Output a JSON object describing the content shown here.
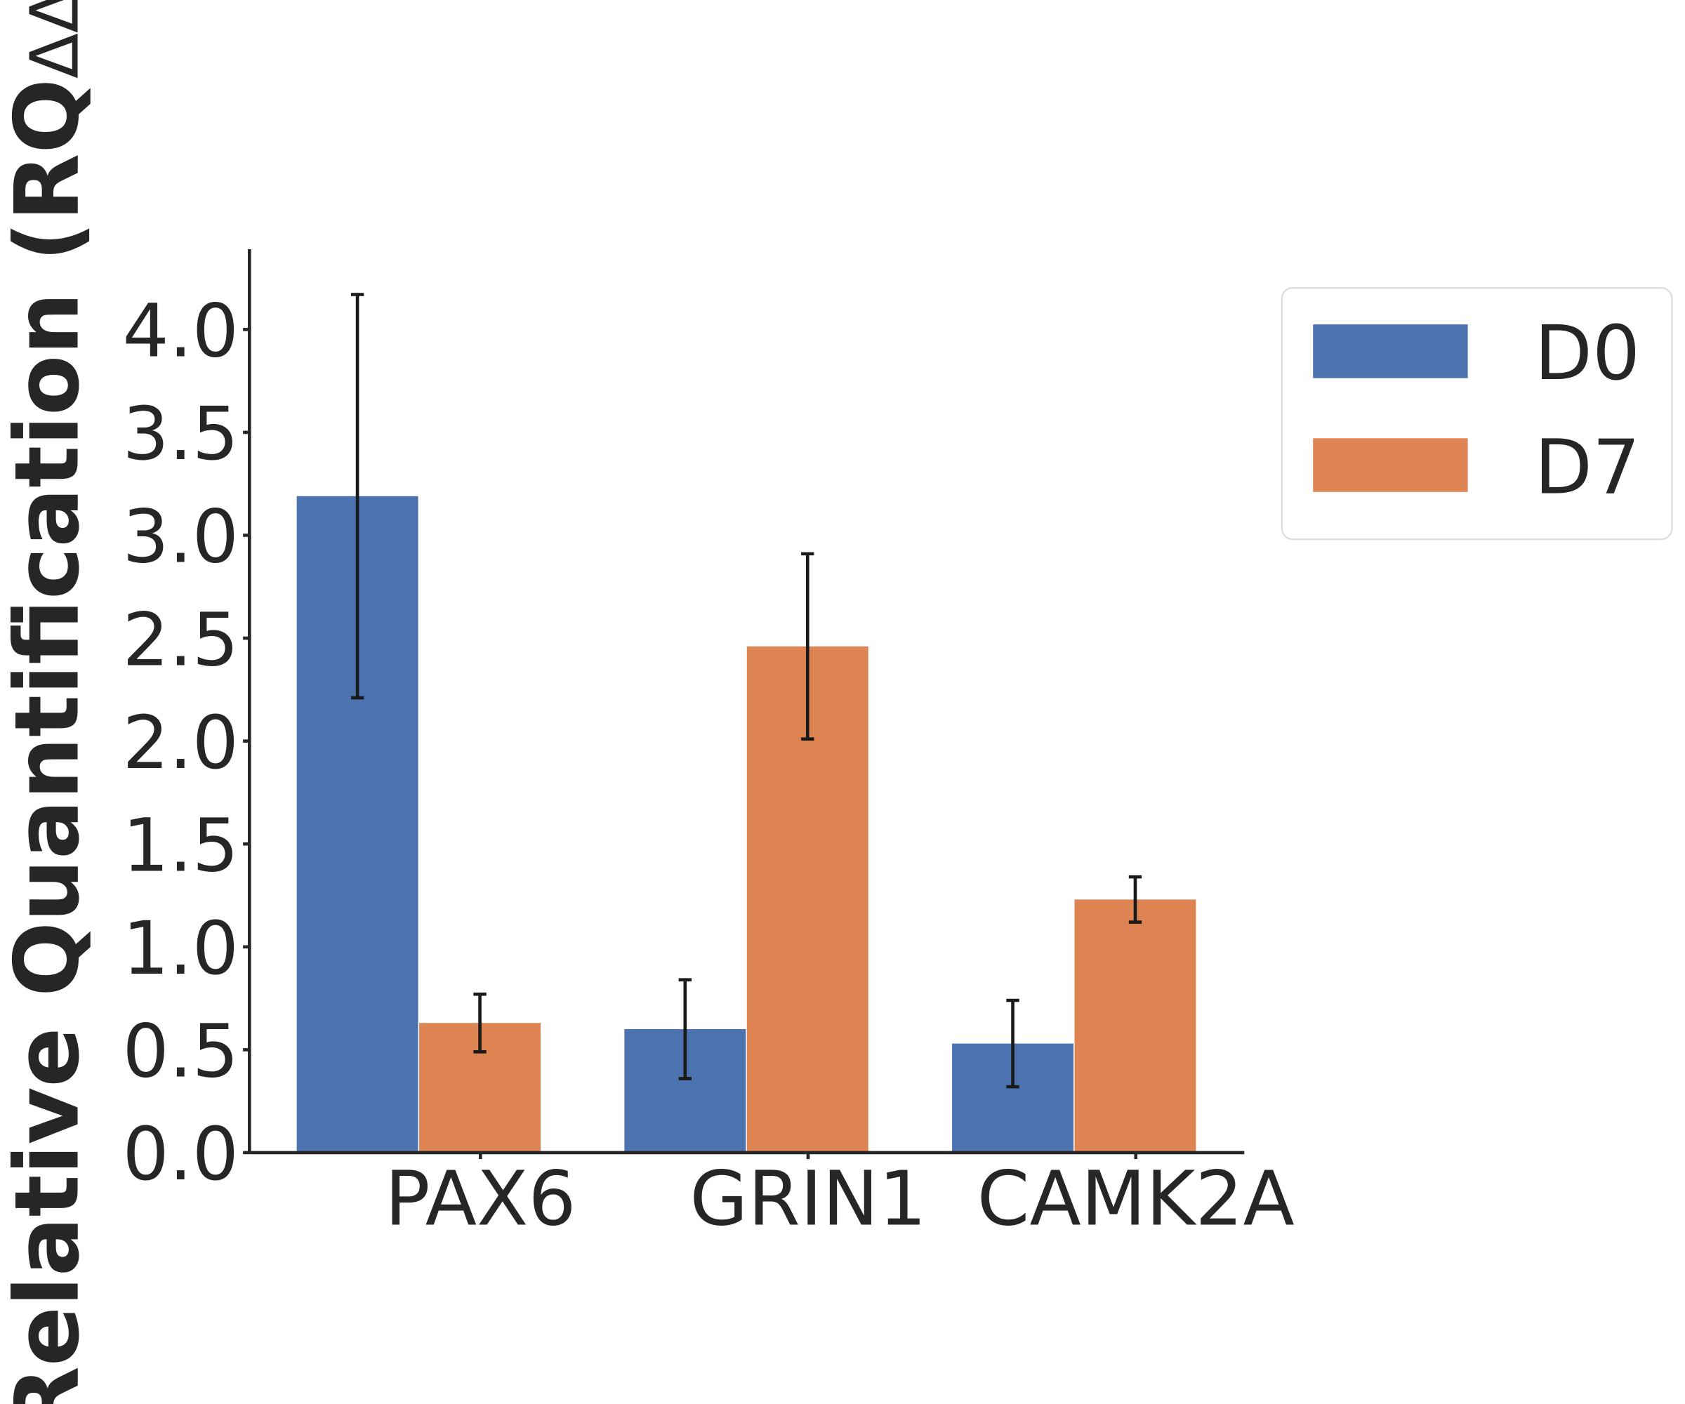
{
  "chart_data": {
    "type": "bar",
    "ylabel": "Relative Quantification (RQ",
    "ylabel_sub": "ΔΔC",
    "categories": [
      "PAX6",
      "GRIN1",
      "CAMK2A"
    ],
    "series": [
      {
        "name": "D0",
        "color": "#4c72b0",
        "values": [
          3.19,
          0.6,
          0.53
        ],
        "errors": [
          0.98,
          0.24,
          0.21
        ]
      },
      {
        "name": "D7",
        "color": "#dd8452",
        "values": [
          0.63,
          2.46,
          1.23
        ],
        "errors": [
          0.14,
          0.45,
          0.11
        ]
      }
    ],
    "ylim": [
      0,
      4.39
    ],
    "yticks": [
      {
        "value": 0,
        "label": "0.0"
      },
      0.5,
      {
        "value": 1,
        "label": "1.0"
      },
      1.5,
      {
        "value": 2,
        "label": "2.0"
      },
      2.5,
      {
        "value": 3,
        "label": "3.0"
      },
      3.5,
      {
        "value": 4,
        "label": "4.0"
      }
    ],
    "legend": "upper right outside"
  }
}
